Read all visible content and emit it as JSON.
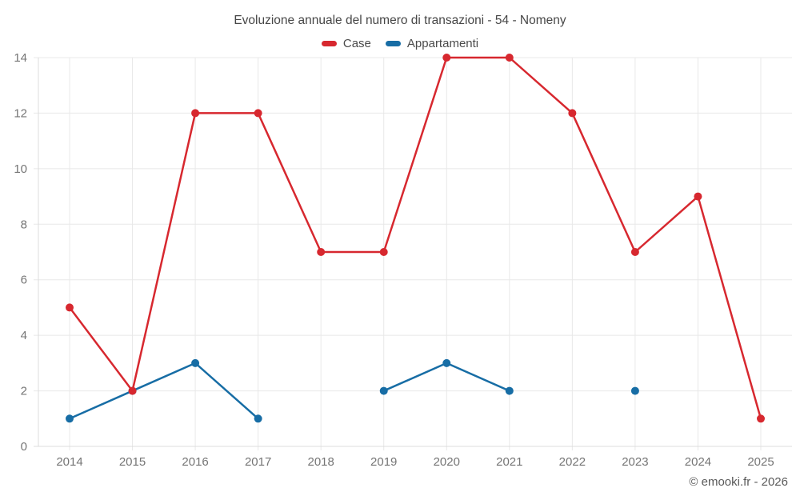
{
  "chart_data": {
    "type": "line",
    "title": "Evoluzione annuale del numero di transazioni - 54 - Nomeny",
    "categories": [
      "2014",
      "2015",
      "2016",
      "2017",
      "2018",
      "2019",
      "2020",
      "2021",
      "2022",
      "2023",
      "2024",
      "2025"
    ],
    "series": [
      {
        "name": "Case",
        "color": "#d7282f",
        "values": [
          5,
          2,
          12,
          12,
          7,
          7,
          14,
          14,
          12,
          7,
          9,
          1
        ]
      },
      {
        "name": "Appartamenti",
        "color": "#176da5",
        "values": [
          1,
          2,
          3,
          1,
          null,
          2,
          3,
          2,
          null,
          2,
          null,
          null
        ]
      }
    ],
    "ylim": [
      0,
      14
    ],
    "ytick_step": 2,
    "grid": true,
    "legend_position": "top",
    "footer": "© emooki.fr - 2026",
    "grid_color": "#e8e8e8",
    "axis_color": "#dcdcdc",
    "tick_label_color": "#757575"
  }
}
